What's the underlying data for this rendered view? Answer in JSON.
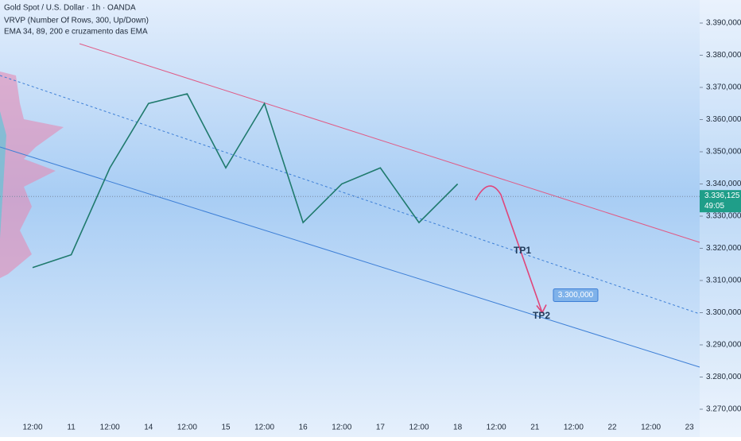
{
  "chart_data": {
    "type": "line",
    "title": "Gold Spot / U.S. Dollar · 1h · OANDA",
    "indicators": [
      "VRVP (Number Of Rows, 300, Up/Down)",
      "EMA 34, 89, 200 e cruzamento das EMA"
    ],
    "categories": [
      "12:00",
      "11",
      "12:00",
      "14",
      "12:00",
      "15",
      "12:00",
      "16",
      "12:00",
      "17",
      "12:00",
      "18",
      "12:00",
      "21",
      "12:00",
      "22",
      "12:00",
      "23"
    ],
    "series": [
      {
        "name": "Gold Spot",
        "color": "#1f7a6d",
        "values": [
          3314,
          3318,
          3345,
          3365,
          3368,
          3345,
          3365,
          3328,
          3340,
          3345,
          3328,
          3340,
          null,
          null,
          null,
          null,
          null,
          null
        ]
      }
    ],
    "ylim": [
      3395,
      3265
    ],
    "yticks": [
      {
        "value": 3390,
        "label": "3.390,000"
      },
      {
        "value": 3380,
        "label": "3.380,000"
      },
      {
        "value": 3370,
        "label": "3.370,000"
      },
      {
        "value": 3360,
        "label": "3.360,000"
      },
      {
        "value": 3350,
        "label": "3.350,000"
      },
      {
        "value": 3340,
        "label": "3.340,000"
      },
      {
        "value": 3330,
        "label": "3.330,000"
      },
      {
        "value": 3320,
        "label": "3.320,000"
      },
      {
        "value": 3310,
        "label": "3.310,000"
      },
      {
        "value": 3300,
        "label": "3.300,000"
      },
      {
        "value": 3290,
        "label": "3.290,000"
      },
      {
        "value": 3280,
        "label": "3.280,000"
      },
      {
        "value": 3270,
        "label": "3.270,000"
      }
    ],
    "current_price": {
      "value": 3336.125,
      "label": "3.336,125"
    },
    "countdown": "49:05",
    "target": {
      "value": 3300,
      "label": "3.300,000"
    },
    "tp_labels": [
      "TP1",
      "TP2"
    ]
  }
}
